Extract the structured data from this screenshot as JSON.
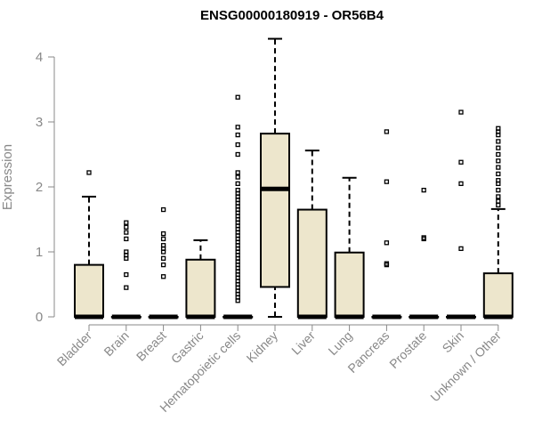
{
  "chart_data": {
    "type": "boxplot",
    "title": "ENSG00000180919 - OR56B4",
    "xlabel": "",
    "ylabel": "Expression",
    "ylim": [
      0,
      4.3
    ],
    "yticks": [
      0,
      1,
      2,
      3,
      4
    ],
    "box_color": "#ede6cc",
    "categories": [
      "Bladder",
      "Brain",
      "Breast",
      "Gastric",
      "Hematopoietic cells",
      "Kidney",
      "Liver",
      "Lung",
      "Pancreas",
      "Prostate",
      "Skin",
      "Unknown / Other"
    ],
    "boxes": [
      {
        "category": "Bladder",
        "min": 0,
        "q1": 0,
        "median": 0,
        "q3": 0.8,
        "max": 1.85,
        "outliers": [
          2.22
        ]
      },
      {
        "category": "Brain",
        "min": 0,
        "q1": 0,
        "median": 0,
        "q3": 0,
        "max": 0,
        "outliers": [
          0.45,
          0.65,
          0.9,
          0.95,
          1.0,
          1.2,
          1.3,
          1.38,
          1.45
        ]
      },
      {
        "category": "Breast",
        "min": 0,
        "q1": 0,
        "median": 0,
        "q3": 0,
        "max": 0,
        "outliers": [
          0.62,
          0.8,
          0.9,
          1.0,
          1.05,
          1.1,
          1.2,
          1.28,
          1.65
        ]
      },
      {
        "category": "Gastric",
        "min": 0,
        "q1": 0,
        "median": 0,
        "q3": 0.88,
        "max": 1.18,
        "outliers": []
      },
      {
        "category": "Hematopoietic cells",
        "min": 0,
        "q1": 0,
        "median": 0,
        "q3": 0,
        "max": 0,
        "outliers": [
          0.25,
          0.3,
          0.35,
          0.4,
          0.45,
          0.5,
          0.55,
          0.6,
          0.65,
          0.7,
          0.75,
          0.8,
          0.85,
          0.9,
          0.95,
          1.0,
          1.05,
          1.1,
          1.15,
          1.2,
          1.25,
          1.3,
          1.35,
          1.4,
          1.45,
          1.5,
          1.55,
          1.6,
          1.65,
          1.7,
          1.75,
          1.8,
          1.85,
          1.9,
          1.95,
          2.05,
          2.15,
          2.22,
          2.5,
          2.65,
          2.8,
          2.92,
          3.38
        ]
      },
      {
        "category": "Kidney",
        "min": 0,
        "q1": 0.46,
        "median": 1.97,
        "q3": 2.82,
        "max": 4.28,
        "outliers": []
      },
      {
        "category": "Liver",
        "min": 0,
        "q1": 0,
        "median": 0,
        "q3": 1.65,
        "max": 2.56,
        "outliers": []
      },
      {
        "category": "Lung",
        "min": 0,
        "q1": 0,
        "median": 0,
        "q3": 0.99,
        "max": 2.14,
        "outliers": []
      },
      {
        "category": "Pancreas",
        "min": 0,
        "q1": 0,
        "median": 0,
        "q3": 0,
        "max": 0,
        "outliers": [
          0.8,
          0.82,
          1.14,
          2.08,
          2.85
        ]
      },
      {
        "category": "Prostate",
        "min": 0,
        "q1": 0,
        "median": 0,
        "q3": 0,
        "max": 0,
        "outliers": [
          1.2,
          1.22,
          1.95
        ]
      },
      {
        "category": "Skin",
        "min": 0,
        "q1": 0,
        "median": 0,
        "q3": 0,
        "max": 0,
        "outliers": [
          1.05,
          2.05,
          2.38,
          3.15
        ]
      },
      {
        "category": "Unknown / Other",
        "min": 0,
        "q1": 0,
        "median": 0,
        "q3": 0.67,
        "max": 1.66,
        "outliers": [
          1.72,
          1.78,
          1.85,
          1.95,
          2.05,
          2.1,
          2.2,
          2.3,
          2.4,
          2.5,
          2.6,
          2.7,
          2.8,
          2.85,
          2.9
        ]
      }
    ]
  }
}
